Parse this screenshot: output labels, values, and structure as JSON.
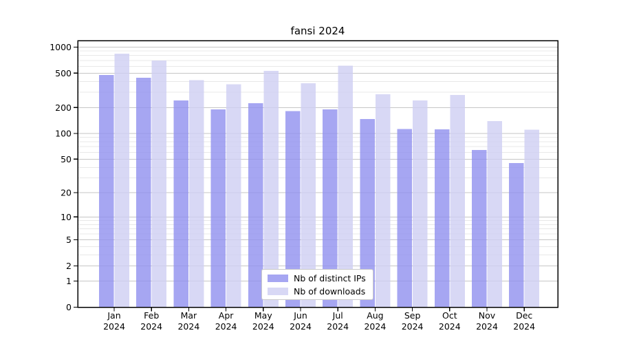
{
  "title": "fansi 2024",
  "chart_data": {
    "type": "bar",
    "title": "fansi 2024",
    "categories": [
      "Jan",
      "Feb",
      "Mar",
      "Apr",
      "May",
      "Jun",
      "Jul",
      "Aug",
      "Sep",
      "Oct",
      "Nov",
      "Dec"
    ],
    "year": "2024",
    "series": [
      {
        "name": "Nb of distinct IPs",
        "color": "#a6a6f2",
        "values": [
          477,
          441,
          241,
          191,
          225,
          181,
          190,
          147,
          113,
          112,
          64,
          45
        ]
      },
      {
        "name": "Nb of downloads",
        "color": "#d8d8f5",
        "values": [
          838,
          698,
          415,
          371,
          532,
          381,
          609,
          284,
          241,
          279,
          139,
          111
        ]
      }
    ],
    "yscale": "log1p",
    "yticks": [
      0,
      1,
      2,
      5,
      10,
      20,
      50,
      100,
      200,
      500,
      1000
    ],
    "ylim": [
      0,
      1200
    ],
    "xlabel": "",
    "ylabel": "",
    "grid": true,
    "legend_position": "bottom-center",
    "colors": {
      "major_grid": "#c6c6c6",
      "minor_grid": "#e8e8e8",
      "axes_frame": "#000000",
      "text": "#000000"
    }
  }
}
